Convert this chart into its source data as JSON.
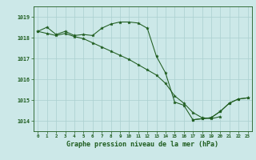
{
  "title": "Graphe pression niveau de la mer (hPa)",
  "background_color": "#cce8e8",
  "grid_color": "#aacfcf",
  "line_color": "#1e5c1e",
  "x": [
    0,
    1,
    2,
    3,
    4,
    5,
    6,
    7,
    8,
    9,
    10,
    11,
    12,
    13,
    14,
    15,
    16,
    17,
    18,
    19,
    20,
    21,
    22,
    23
  ],
  "y_line1": [
    1018.3,
    1018.5,
    1018.15,
    1018.3,
    1018.1,
    1018.15,
    1018.1,
    1018.45,
    1018.65,
    1018.75,
    1018.75,
    1018.7,
    1018.45,
    1017.1,
    1016.3,
    1014.9,
    1014.75,
    1014.05,
    1014.1,
    1014.15,
    1014.45,
    1014.85,
    1015.05,
    1015.1
  ],
  "y_line2": [
    1018.3,
    1018.2,
    1018.1,
    1018.2,
    1018.05,
    1017.95,
    1017.75,
    1017.55,
    1017.35,
    1017.15,
    1016.95,
    1016.7,
    1016.45,
    1016.2,
    1015.8,
    1015.2,
    1014.85,
    1014.4,
    1014.15,
    1014.1,
    1014.2,
    null,
    null,
    null
  ],
  "y_line3": [
    null,
    null,
    null,
    null,
    null,
    null,
    null,
    null,
    null,
    null,
    null,
    null,
    null,
    null,
    null,
    null,
    null,
    1014.05,
    1014.1,
    1014.15,
    1014.45,
    1014.85,
    1015.05,
    1015.1
  ],
  "ylim": [
    1013.5,
    1019.5
  ],
  "yticks": [
    1014,
    1015,
    1016,
    1017,
    1018,
    1019
  ],
  "xticks": [
    0,
    1,
    2,
    3,
    4,
    5,
    6,
    7,
    8,
    9,
    10,
    11,
    12,
    13,
    14,
    15,
    16,
    17,
    18,
    19,
    20,
    21,
    22,
    23
  ]
}
